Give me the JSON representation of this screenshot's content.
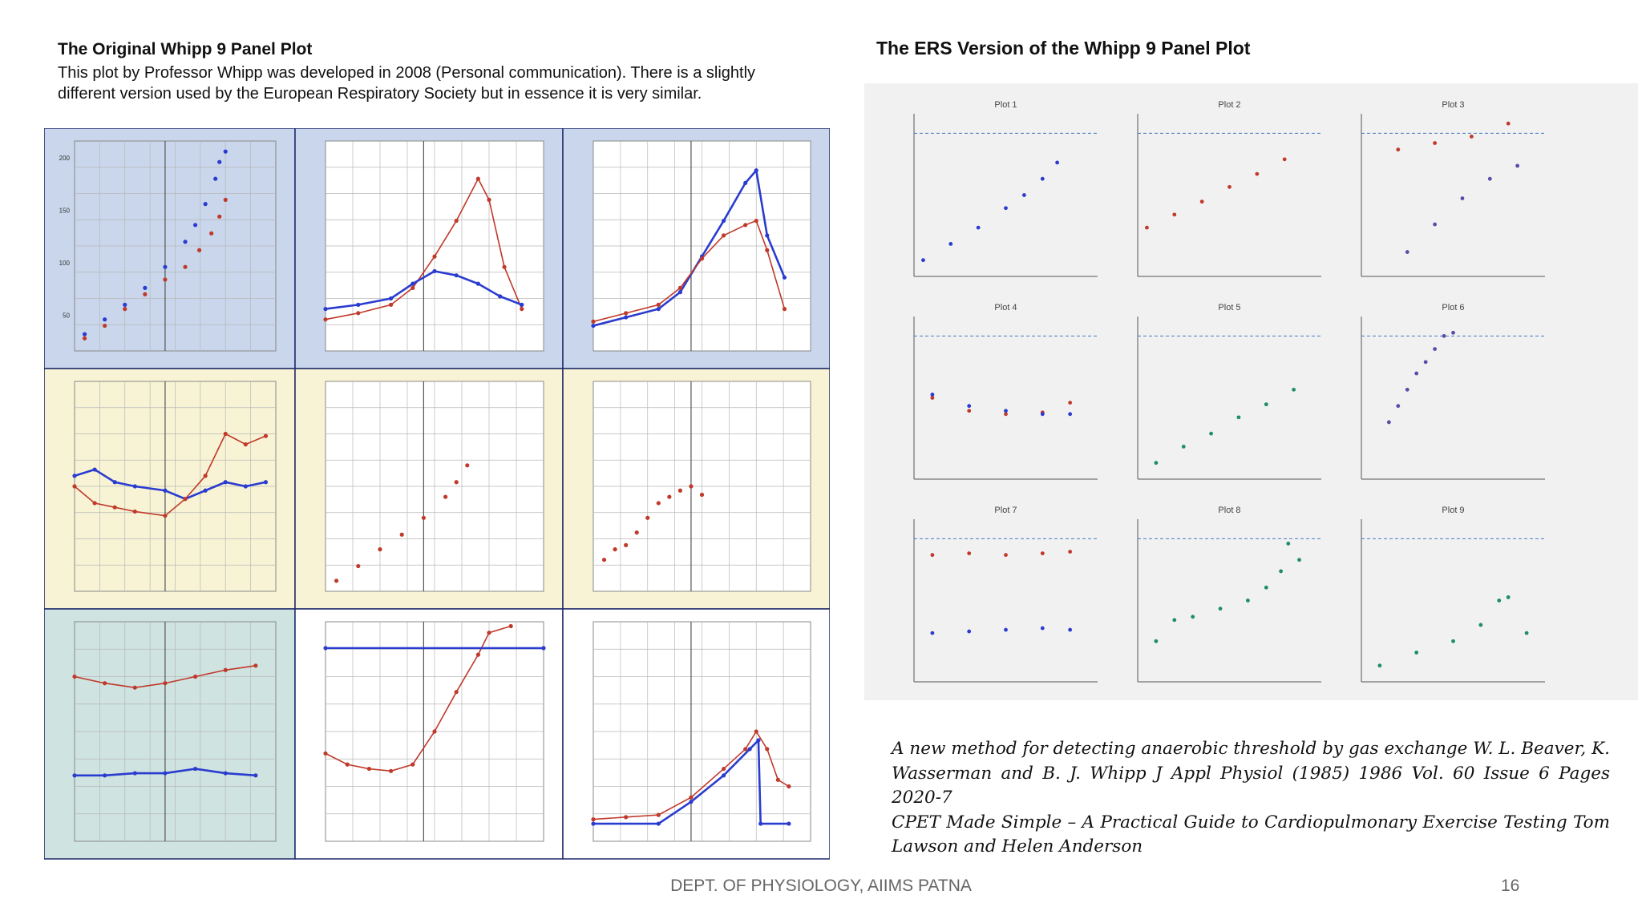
{
  "left": {
    "title": "The Original Whipp 9 Panel Plot",
    "desc": "This plot by Professor Whipp was developed in 2008 (Personal communication). There is a slightly different version used by the European Respiratory Society but in essence it is very similar."
  },
  "right": {
    "title": "The ERS Version of the Whipp 9 Panel Plot"
  },
  "citations": [
    "A new method for detecting anaerobic threshold by gas exchange W. L. Beaver, K. Wasserman and B. J. Whipp J Appl Physiol (1985) 1986 Vol. 60 Issue 6 Pages 2020-7",
    "CPET Made Simple – A Practical Guide to Cardiopulmonary Exercise Testing Tom Lawson and Helen Anderson"
  ],
  "footer": {
    "text": "DEPT. OF PHYSIOLOGY, AIIMS PATNA",
    "page": "16"
  },
  "colors": {
    "blue": "#2a3ccf",
    "red": "#c0392b",
    "teal": "#1e8c6e",
    "purple": "#5b4aa8",
    "bg_blue": "#c9d6ec",
    "bg_yellow": "#f7f3d4",
    "bg_teal": "#cfe3e0"
  },
  "chart_data": [
    {
      "type": "scatter",
      "group": "original",
      "series": [
        {
          "color": "blue",
          "points": [
            [
              0.05,
              0.08
            ],
            [
              0.15,
              0.15
            ],
            [
              0.25,
              0.22
            ],
            [
              0.35,
              0.3
            ],
            [
              0.45,
              0.4
            ],
            [
              0.55,
              0.52
            ],
            [
              0.6,
              0.6
            ],
            [
              0.65,
              0.7
            ],
            [
              0.7,
              0.82
            ],
            [
              0.72,
              0.9
            ],
            [
              0.75,
              0.95
            ]
          ]
        },
        {
          "color": "red",
          "points": [
            [
              0.05,
              0.06
            ],
            [
              0.15,
              0.12
            ],
            [
              0.25,
              0.2
            ],
            [
              0.35,
              0.27
            ],
            [
              0.45,
              0.34
            ],
            [
              0.55,
              0.4
            ],
            [
              0.62,
              0.48
            ],
            [
              0.68,
              0.56
            ],
            [
              0.72,
              0.64
            ],
            [
              0.75,
              0.72
            ]
          ]
        }
      ],
      "yticks": [
        "200",
        "150",
        "100",
        "50"
      ]
    },
    {
      "type": "line",
      "group": "original",
      "series": [
        {
          "color": "red",
          "points": [
            [
              0,
              0.15
            ],
            [
              0.15,
              0.18
            ],
            [
              0.3,
              0.22
            ],
            [
              0.4,
              0.3
            ],
            [
              0.5,
              0.45
            ],
            [
              0.6,
              0.62
            ],
            [
              0.7,
              0.82
            ],
            [
              0.75,
              0.72
            ],
            [
              0.82,
              0.4
            ],
            [
              0.9,
              0.2
            ]
          ]
        },
        {
          "color": "blue",
          "points": [
            [
              0,
              0.2
            ],
            [
              0.15,
              0.22
            ],
            [
              0.3,
              0.25
            ],
            [
              0.4,
              0.32
            ],
            [
              0.5,
              0.38
            ],
            [
              0.6,
              0.36
            ],
            [
              0.7,
              0.32
            ],
            [
              0.8,
              0.26
            ],
            [
              0.9,
              0.22
            ]
          ]
        }
      ]
    },
    {
      "type": "line",
      "group": "original",
      "series": [
        {
          "color": "blue",
          "points": [
            [
              0,
              0.12
            ],
            [
              0.15,
              0.16
            ],
            [
              0.3,
              0.2
            ],
            [
              0.4,
              0.28
            ],
            [
              0.5,
              0.45
            ],
            [
              0.6,
              0.62
            ],
            [
              0.7,
              0.8
            ],
            [
              0.75,
              0.86
            ],
            [
              0.8,
              0.55
            ],
            [
              0.88,
              0.35
            ]
          ]
        },
        {
          "color": "red",
          "points": [
            [
              0,
              0.14
            ],
            [
              0.15,
              0.18
            ],
            [
              0.3,
              0.22
            ],
            [
              0.4,
              0.3
            ],
            [
              0.5,
              0.44
            ],
            [
              0.6,
              0.55
            ],
            [
              0.7,
              0.6
            ],
            [
              0.75,
              0.62
            ],
            [
              0.8,
              0.48
            ],
            [
              0.88,
              0.2
            ]
          ]
        }
      ]
    },
    {
      "type": "line",
      "group": "original",
      "series": [
        {
          "color": "blue",
          "points": [
            [
              0,
              0.55
            ],
            [
              0.1,
              0.58
            ],
            [
              0.2,
              0.52
            ],
            [
              0.3,
              0.5
            ],
            [
              0.45,
              0.48
            ],
            [
              0.55,
              0.44
            ],
            [
              0.65,
              0.48
            ],
            [
              0.75,
              0.52
            ],
            [
              0.85,
              0.5
            ],
            [
              0.95,
              0.52
            ]
          ]
        },
        {
          "color": "red",
          "points": [
            [
              0,
              0.5
            ],
            [
              0.1,
              0.42
            ],
            [
              0.2,
              0.4
            ],
            [
              0.3,
              0.38
            ],
            [
              0.45,
              0.36
            ],
            [
              0.55,
              0.44
            ],
            [
              0.65,
              0.55
            ],
            [
              0.75,
              0.75
            ],
            [
              0.85,
              0.7
            ],
            [
              0.95,
              0.74
            ]
          ]
        }
      ]
    },
    {
      "type": "scatter",
      "group": "original",
      "series": [
        {
          "color": "red",
          "points": [
            [
              0.05,
              0.05
            ],
            [
              0.15,
              0.12
            ],
            [
              0.25,
              0.2
            ],
            [
              0.35,
              0.27
            ],
            [
              0.45,
              0.35
            ],
            [
              0.55,
              0.45
            ],
            [
              0.6,
              0.52
            ],
            [
              0.65,
              0.6
            ]
          ]
        }
      ]
    },
    {
      "type": "scatter",
      "group": "original",
      "series": [
        {
          "color": "red",
          "points": [
            [
              0.05,
              0.15
            ],
            [
              0.1,
              0.2
            ],
            [
              0.15,
              0.22
            ],
            [
              0.2,
              0.28
            ],
            [
              0.25,
              0.35
            ],
            [
              0.3,
              0.42
            ],
            [
              0.35,
              0.45
            ],
            [
              0.4,
              0.48
            ],
            [
              0.45,
              0.5
            ],
            [
              0.5,
              0.46
            ]
          ]
        }
      ]
    },
    {
      "type": "line",
      "group": "original",
      "series": [
        {
          "color": "red",
          "points": [
            [
              0,
              0.75
            ],
            [
              0.15,
              0.72
            ],
            [
              0.3,
              0.7
            ],
            [
              0.45,
              0.72
            ],
            [
              0.6,
              0.75
            ],
            [
              0.75,
              0.78
            ],
            [
              0.9,
              0.8
            ]
          ]
        },
        {
          "color": "blue",
          "points": [
            [
              0,
              0.3
            ],
            [
              0.15,
              0.3
            ],
            [
              0.3,
              0.31
            ],
            [
              0.45,
              0.31
            ],
            [
              0.6,
              0.33
            ],
            [
              0.75,
              0.31
            ],
            [
              0.9,
              0.3
            ]
          ]
        }
      ]
    },
    {
      "type": "line",
      "group": "original",
      "series": [
        {
          "color": "red",
          "points": [
            [
              0,
              0.4
            ],
            [
              0.1,
              0.35
            ],
            [
              0.2,
              0.33
            ],
            [
              0.3,
              0.32
            ],
            [
              0.4,
              0.35
            ],
            [
              0.5,
              0.5
            ],
            [
              0.6,
              0.68
            ],
            [
              0.7,
              0.85
            ],
            [
              0.75,
              0.95
            ],
            [
              0.85,
              0.98
            ]
          ]
        },
        {
          "color": "blue",
          "points": [
            [
              0,
              0.88
            ],
            [
              1,
              0.88
            ]
          ]
        }
      ]
    },
    {
      "type": "line",
      "group": "original",
      "series": [
        {
          "color": "red",
          "points": [
            [
              0,
              0.1
            ],
            [
              0.15,
              0.11
            ],
            [
              0.3,
              0.12
            ],
            [
              0.45,
              0.2
            ],
            [
              0.6,
              0.33
            ],
            [
              0.7,
              0.42
            ],
            [
              0.75,
              0.5
            ],
            [
              0.8,
              0.42
            ],
            [
              0.85,
              0.28
            ],
            [
              0.9,
              0.25
            ]
          ]
        },
        {
          "color": "blue",
          "points": [
            [
              0,
              0.08
            ],
            [
              0.3,
              0.08
            ],
            [
              0.45,
              0.18
            ],
            [
              0.6,
              0.3
            ],
            [
              0.72,
              0.42
            ],
            [
              0.76,
              0.46
            ],
            [
              0.77,
              0.08
            ],
            [
              0.9,
              0.08
            ]
          ]
        }
      ]
    },
    {
      "type": "scatter",
      "group": "ers",
      "label": "Plot 1",
      "series": [
        {
          "color": "blue",
          "points": [
            [
              0.05,
              0.1
            ],
            [
              0.2,
              0.2
            ],
            [
              0.35,
              0.3
            ],
            [
              0.5,
              0.42
            ],
            [
              0.6,
              0.5
            ],
            [
              0.7,
              0.6
            ],
            [
              0.78,
              0.7
            ]
          ]
        }
      ]
    },
    {
      "type": "scatter",
      "group": "ers",
      "label": "Plot 2",
      "series": [
        {
          "color": "red",
          "points": [
            [
              0.05,
              0.3
            ],
            [
              0.2,
              0.38
            ],
            [
              0.35,
              0.46
            ],
            [
              0.5,
              0.55
            ],
            [
              0.65,
              0.63
            ],
            [
              0.8,
              0.72
            ]
          ]
        }
      ]
    },
    {
      "type": "scatter",
      "group": "ers",
      "label": "Plot 3",
      "series": [
        {
          "color": "red",
          "points": [
            [
              0.2,
              0.78
            ],
            [
              0.4,
              0.82
            ],
            [
              0.6,
              0.86
            ],
            [
              0.8,
              0.94
            ]
          ]
        },
        {
          "color": "purple",
          "points": [
            [
              0.25,
              0.15
            ],
            [
              0.4,
              0.32
            ],
            [
              0.55,
              0.48
            ],
            [
              0.7,
              0.6
            ],
            [
              0.85,
              0.68
            ]
          ]
        }
      ]
    },
    {
      "type": "scatter",
      "group": "ers",
      "label": "Plot 4",
      "series": [
        {
          "color": "red",
          "points": [
            [
              0.1,
              0.5
            ],
            [
              0.3,
              0.42
            ],
            [
              0.5,
              0.4
            ],
            [
              0.7,
              0.41
            ],
            [
              0.85,
              0.47
            ]
          ]
        },
        {
          "color": "blue",
          "points": [
            [
              0.1,
              0.52
            ],
            [
              0.3,
              0.45
            ],
            [
              0.5,
              0.42
            ],
            [
              0.7,
              0.4
            ],
            [
              0.85,
              0.4
            ]
          ]
        }
      ]
    },
    {
      "type": "scatter",
      "group": "ers",
      "label": "Plot 5",
      "series": [
        {
          "color": "teal",
          "points": [
            [
              0.1,
              0.1
            ],
            [
              0.25,
              0.2
            ],
            [
              0.4,
              0.28
            ],
            [
              0.55,
              0.38
            ],
            [
              0.7,
              0.46
            ],
            [
              0.85,
              0.55
            ]
          ]
        }
      ]
    },
    {
      "type": "scatter",
      "group": "ers",
      "label": "Plot 6",
      "series": [
        {
          "color": "purple",
          "points": [
            [
              0.15,
              0.35
            ],
            [
              0.2,
              0.45
            ],
            [
              0.25,
              0.55
            ],
            [
              0.3,
              0.65
            ],
            [
              0.35,
              0.72
            ],
            [
              0.4,
              0.8
            ],
            [
              0.45,
              0.88
            ],
            [
              0.5,
              0.9
            ]
          ]
        }
      ]
    },
    {
      "type": "scatter",
      "group": "ers",
      "label": "Plot 7",
      "series": [
        {
          "color": "red",
          "points": [
            [
              0.1,
              0.78
            ],
            [
              0.3,
              0.79
            ],
            [
              0.5,
              0.78
            ],
            [
              0.7,
              0.79
            ],
            [
              0.85,
              0.8
            ]
          ]
        },
        {
          "color": "blue",
          "points": [
            [
              0.1,
              0.3
            ],
            [
              0.3,
              0.31
            ],
            [
              0.5,
              0.32
            ],
            [
              0.7,
              0.33
            ],
            [
              0.85,
              0.32
            ]
          ]
        }
      ]
    },
    {
      "type": "scatter",
      "group": "ers",
      "label": "Plot 8",
      "series": [
        {
          "color": "teal",
          "points": [
            [
              0.1,
              0.25
            ],
            [
              0.2,
              0.38
            ],
            [
              0.3,
              0.4
            ],
            [
              0.45,
              0.45
            ],
            [
              0.6,
              0.5
            ],
            [
              0.7,
              0.58
            ],
            [
              0.78,
              0.68
            ],
            [
              0.82,
              0.85
            ],
            [
              0.88,
              0.75
            ]
          ]
        }
      ]
    },
    {
      "type": "scatter",
      "group": "ers",
      "label": "Plot 9",
      "series": [
        {
          "color": "teal",
          "points": [
            [
              0.1,
              0.1
            ],
            [
              0.3,
              0.18
            ],
            [
              0.5,
              0.25
            ],
            [
              0.65,
              0.35
            ],
            [
              0.75,
              0.5
            ],
            [
              0.8,
              0.52
            ],
            [
              0.9,
              0.3
            ]
          ]
        }
      ]
    }
  ]
}
